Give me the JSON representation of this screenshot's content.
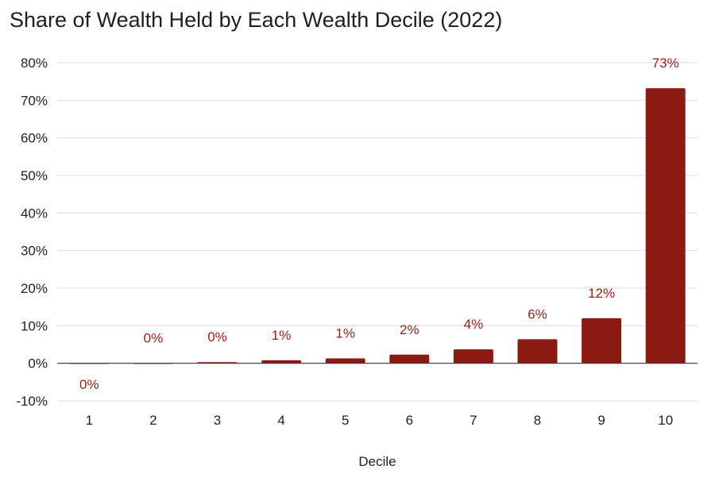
{
  "chart_data": {
    "type": "bar",
    "title": "Share of Wealth Held by Each Wealth Decile (2022)",
    "xlabel": "Decile",
    "ylabel": "",
    "categories": [
      "1",
      "2",
      "3",
      "4",
      "5",
      "6",
      "7",
      "8",
      "9",
      "10"
    ],
    "values": [
      -0.1,
      0.0,
      0.3,
      0.8,
      1.3,
      2.3,
      3.7,
      6.4,
      12.0,
      73.2
    ],
    "data_labels": [
      "0%",
      "0%",
      "0%",
      "1%",
      "1%",
      "2%",
      "4%",
      "6%",
      "12%",
      "73%"
    ],
    "y_ticks": [
      "80%",
      "70%",
      "60%",
      "50%",
      "40%",
      "30%",
      "20%",
      "10%",
      "0%",
      "-10%"
    ],
    "y_tick_values": [
      80,
      70,
      60,
      50,
      40,
      30,
      20,
      10,
      0,
      -10
    ],
    "ylim": [
      -10,
      80
    ],
    "grid": true,
    "legend": "none",
    "colors": {
      "bar": "#8b1a12",
      "label": "#9b1c14"
    }
  }
}
